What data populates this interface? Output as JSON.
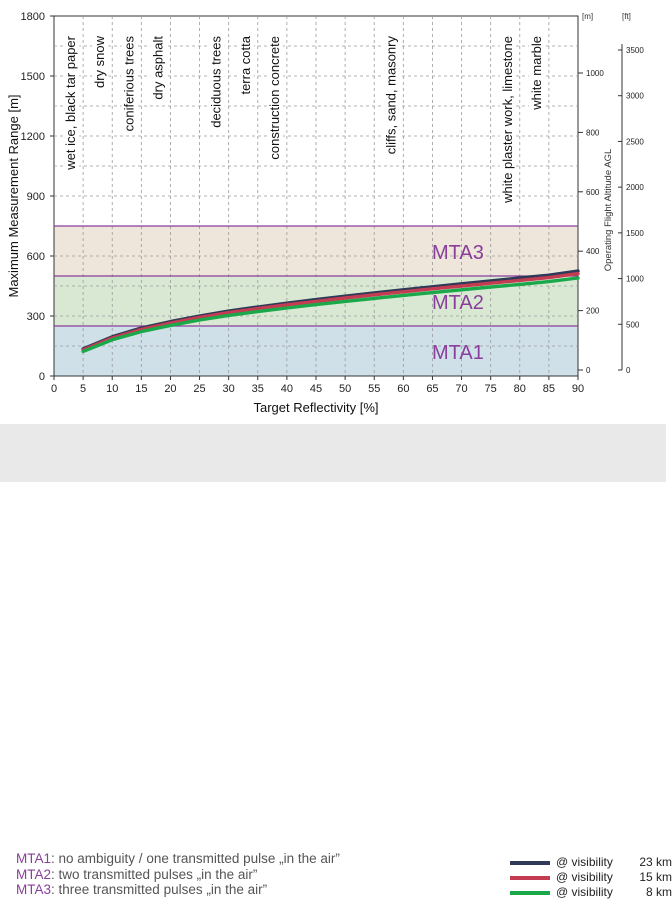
{
  "chart_data": {
    "type": "line",
    "xlabel": "Target Reflectivity [%]",
    "ylabel": "Maximum Measurement Range [m]",
    "y2label": "Operating Flight Altitude AGL",
    "y2unit": "[m]",
    "y3unit": "[ft]",
    "xlim": [
      0,
      90
    ],
    "ylim": [
      0,
      1800
    ],
    "xticks": [
      "0",
      "5",
      "10",
      "15",
      "20",
      "25",
      "30",
      "35",
      "40",
      "45",
      "50",
      "55",
      "60",
      "65",
      "70",
      "75",
      "80",
      "85",
      "90"
    ],
    "yticks": [
      "0",
      "300",
      "600",
      "900",
      "1200",
      "1500",
      "1800"
    ],
    "y2ticks": [
      {
        "label": "0",
        "m": 0
      },
      {
        "label": "200",
        "m": 200
      },
      {
        "label": "400",
        "m": 400
      },
      {
        "label": "600",
        "m": 600
      },
      {
        "label": "800",
        "m": 800
      },
      {
        "label": "1000",
        "m": 1000
      }
    ],
    "y3ticks": [
      {
        "label": "0",
        "ft": 0
      },
      {
        "label": "500",
        "ft": 500
      },
      {
        "label": "1000",
        "ft": 1000
      },
      {
        "label": "1500",
        "ft": 1500
      },
      {
        "label": "2000",
        "ft": 2000
      },
      {
        "label": "2500",
        "ft": 2500
      },
      {
        "label": "3000",
        "ft": 3000
      },
      {
        "label": "3500",
        "ft": 3500
      }
    ],
    "zones": [
      {
        "label": "MTA1",
        "from": 0,
        "to": 250,
        "color": "#cfe0e9"
      },
      {
        "label": "MTA2",
        "from": 250,
        "to": 500,
        "color": "#d8e8d3"
      },
      {
        "label": "MTA3",
        "from": 500,
        "to": 750,
        "color": "#eee6da"
      }
    ],
    "zone_line_color": "#8a3e9b",
    "materials": [
      {
        "label": "wet ice, black tar paper",
        "x": 5
      },
      {
        "label": "dry snow",
        "x": 10
      },
      {
        "label": "coniferious trees",
        "x": 15
      },
      {
        "label": "dry asphalt",
        "x": 20
      },
      {
        "label": "deciduous trees",
        "x": 30
      },
      {
        "label": "terra cotta",
        "x": 35
      },
      {
        "label": "construction concrete",
        "x": 40
      },
      {
        "label": "cliffs, sand, masonry",
        "x": 60
      },
      {
        "label": "white plaster work, limestone",
        "x": 80
      },
      {
        "label": "white marble",
        "x": 85
      }
    ],
    "series": [
      {
        "name": "@ visibility 23 km",
        "color": "#2e3a57",
        "x": [
          5,
          10,
          15,
          20,
          25,
          30,
          35,
          40,
          45,
          50,
          55,
          60,
          65,
          70,
          75,
          80,
          85,
          90
        ],
        "values": [
          135,
          196,
          240,
          272,
          300,
          325,
          345,
          364,
          382,
          399,
          415,
          431,
          446,
          461,
          475,
          490,
          504,
          525
        ]
      },
      {
        "name": "@ visibility 15 km",
        "color": "#c43c52",
        "x": [
          5,
          10,
          15,
          20,
          25,
          30,
          35,
          40,
          45,
          50,
          55,
          60,
          65,
          70,
          75,
          80,
          85,
          90
        ],
        "values": [
          130,
          190,
          233,
          265,
          293,
          317,
          337,
          356,
          373,
          390,
          406,
          421,
          436,
          450,
          464,
          478,
          492,
          512
        ]
      },
      {
        "name": "@ visibility 8 km",
        "color": "#1aa84a",
        "x": [
          5,
          10,
          15,
          20,
          25,
          30,
          35,
          40,
          45,
          50,
          55,
          60,
          65,
          70,
          75,
          80,
          85,
          90
        ],
        "values": [
          123,
          181,
          222,
          253,
          280,
          303,
          322,
          340,
          357,
          373,
          388,
          403,
          417,
          431,
          445,
          458,
          472,
          490
        ]
      }
    ]
  },
  "notes": [
    {
      "tag": "MTA1",
      "text": ": no ambiguity / one transmitted pulse „in the air”"
    },
    {
      "tag": "MTA2",
      "text": ": two transmitted pulses „in the air”"
    },
    {
      "tag": "MTA3",
      "text": ": three transmitted pulses „in the air”"
    }
  ],
  "visibility_legend": [
    {
      "at": "@ visibility",
      "value": "23 km",
      "color": "#2e3a57"
    },
    {
      "at": "@ visibility",
      "value": "15 km",
      "color": "#c43c52"
    },
    {
      "at": "@ visibility",
      "value": "8 km",
      "color": "#1aa84a"
    }
  ]
}
